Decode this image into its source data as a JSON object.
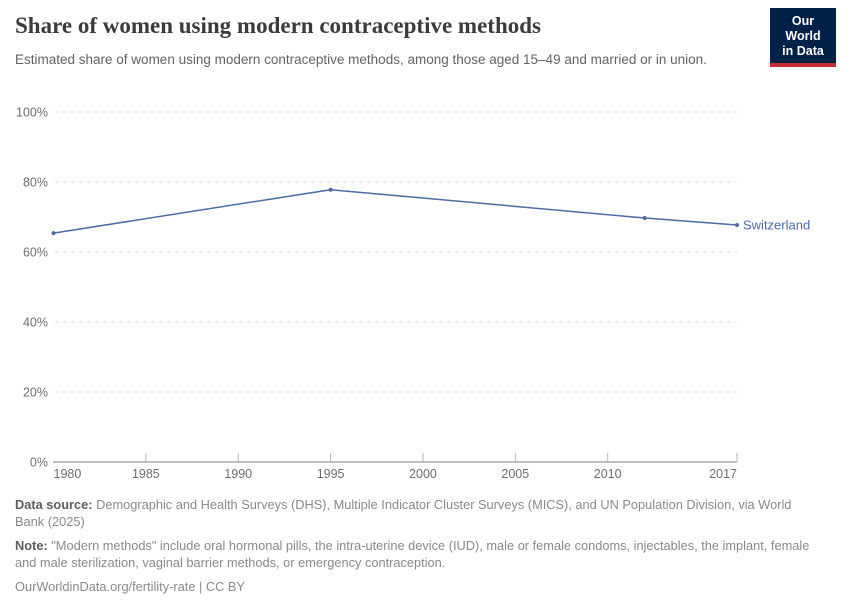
{
  "header": {
    "title": "Share of women using modern contraceptive methods",
    "subtitle": "Estimated share of women using modern contraceptive methods, among those aged 15–49 and married or in union.",
    "logo": {
      "line1": "Our World",
      "line2": "in Data",
      "bg_color": "#002147",
      "accent_color": "#c52b33"
    }
  },
  "chart_data": {
    "type": "line",
    "title": "Share of women using modern contraceptive methods",
    "xlabel": "",
    "ylabel": "",
    "xlim": [
      1980,
      2017
    ],
    "ylim": [
      0,
      100
    ],
    "x_ticks": [
      1980,
      1985,
      1990,
      1995,
      2000,
      2005,
      2010,
      2017
    ],
    "y_ticks": [
      0,
      20,
      40,
      60,
      80,
      100
    ],
    "y_tick_suffix": "%",
    "grid": "horizontal-dashed",
    "legend_position": "end-of-line-label",
    "series": [
      {
        "name": "Switzerland",
        "color": "#4d6ba3",
        "points": [
          {
            "year": 1980,
            "value": 65.4
          },
          {
            "year": 1995,
            "value": 77.8
          },
          {
            "year": 2012,
            "value": 69.7
          },
          {
            "year": 2017,
            "value": 67.7
          }
        ]
      }
    ]
  },
  "footer": {
    "data_source_label": "Data source:",
    "data_source": "Demographic and Health Surveys (DHS), Multiple Indicator Cluster Surveys (MICS), and UN Population Division, via World Bank (2025)",
    "note_label": "Note:",
    "note": "\"Modern methods\" include oral hormonal pills, the intra-uterine device (IUD), male or female condoms, injectables, the implant, female and male sterilization, vaginal barrier methods, or emergency contraception.",
    "url": "OurWorldinData.org/fertility-rate",
    "separator": " | ",
    "license": "CC BY"
  }
}
